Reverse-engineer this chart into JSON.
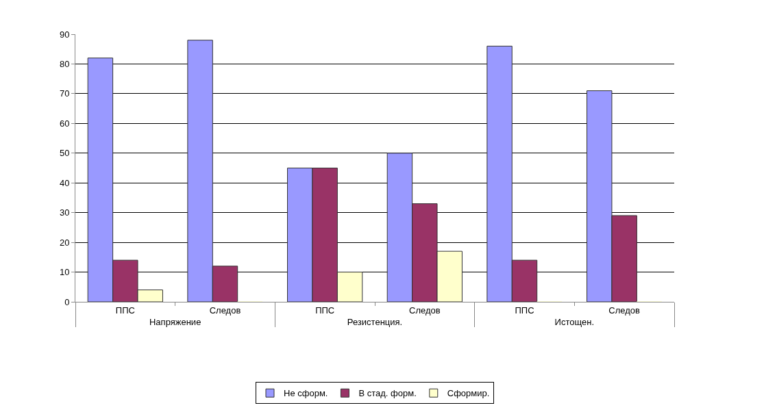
{
  "chart_data": {
    "type": "bar",
    "categories": [
      "ППС",
      "Следов",
      "ППС",
      "Следов",
      "ППС",
      "Следов"
    ],
    "annotations": [
      "Напряжение",
      "Резистенция.",
      "Истощен."
    ],
    "series": [
      {
        "name": "Не сформ.",
        "color": "#9999ff",
        "values": [
          82,
          88,
          45,
          50,
          86,
          71
        ]
      },
      {
        "name": "В стад. форм.",
        "color": "#993366",
        "values": [
          14,
          12,
          45,
          33,
          14,
          29
        ]
      },
      {
        "name": "Сформир.",
        "color": "#ffffcc",
        "values": [
          4,
          0,
          10,
          17,
          0,
          0
        ]
      }
    ],
    "ylim": [
      0,
      90
    ],
    "yticks": [
      0,
      10,
      20,
      30,
      40,
      50,
      60,
      70,
      80,
      90
    ],
    "grid": "y",
    "legend": "bottom"
  }
}
